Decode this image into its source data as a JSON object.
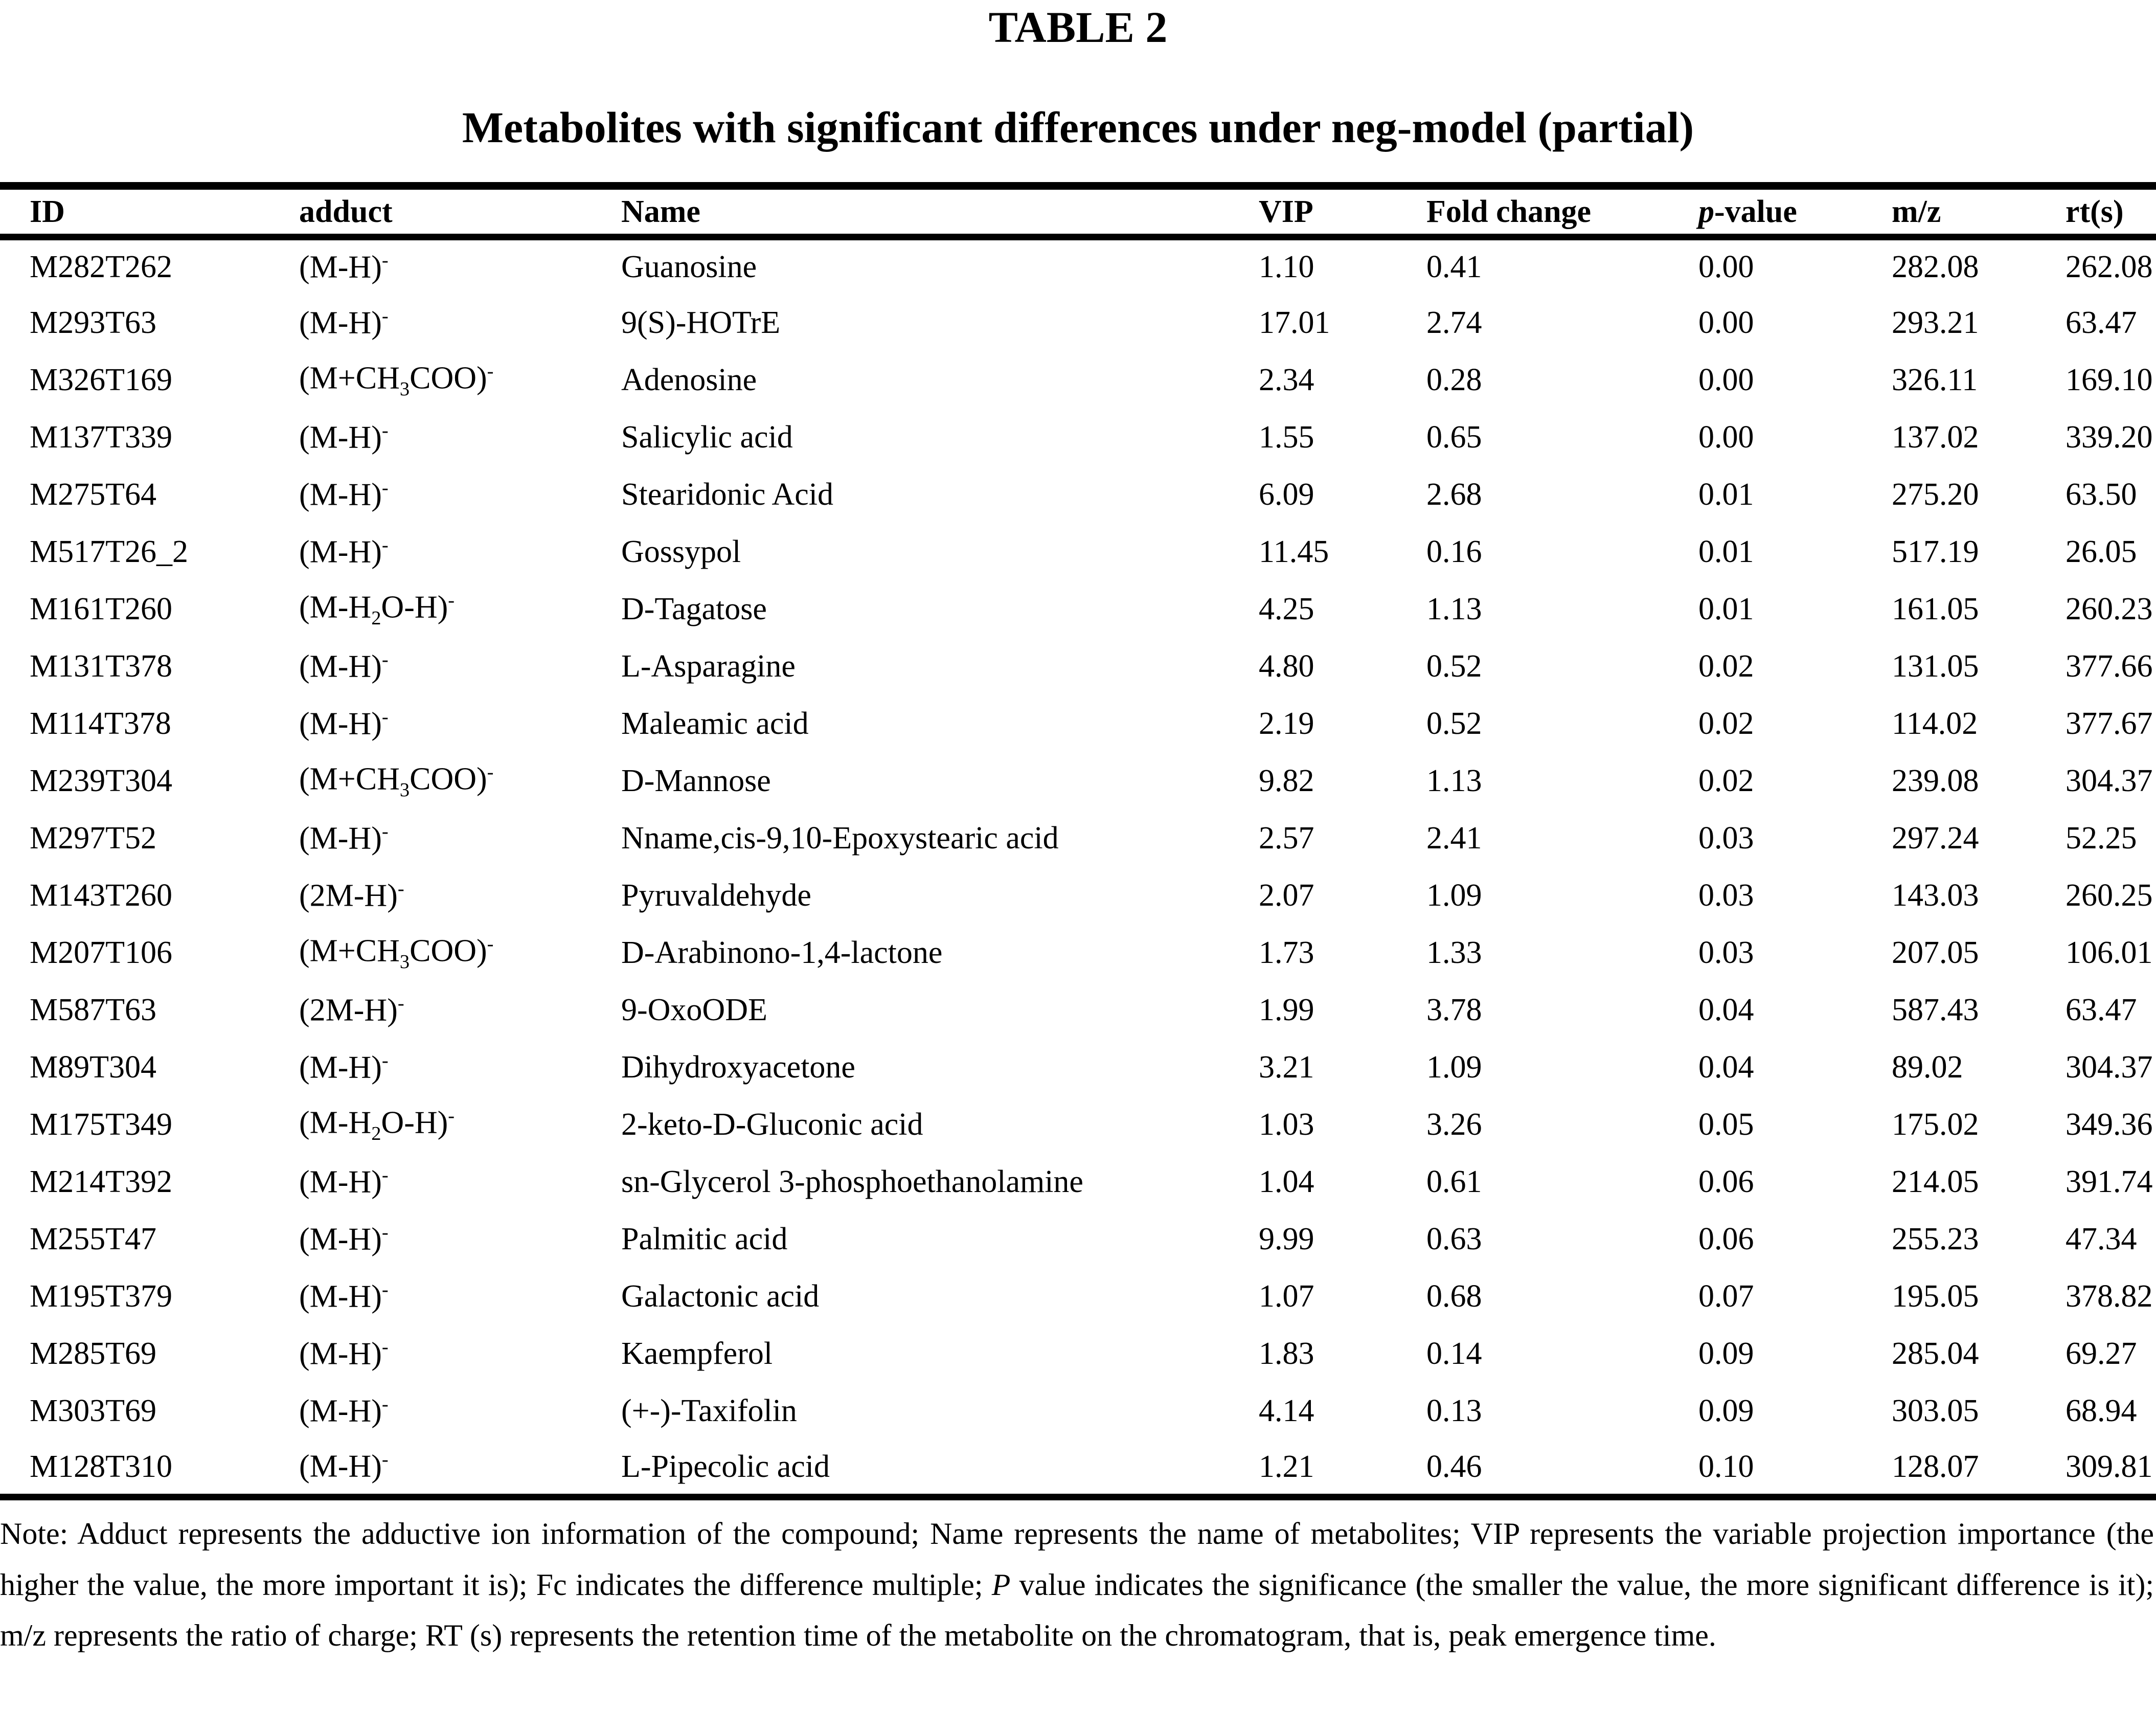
{
  "title": "TABLE 2",
  "subtitle": "Metabolites with significant differences under neg-model (partial)",
  "columns": {
    "id": "ID",
    "adduct": "adduct",
    "name": "Name",
    "vip": "VIP",
    "fold_change": "Fold change",
    "p_value": "*p*-value",
    "mz": "m/z",
    "rt": "rt(s)"
  },
  "rows": [
    {
      "id": "M282T262",
      "adduct": "(M-H)^-^",
      "name": "Guanosine",
      "vip": "1.10",
      "fold_change": "0.41",
      "p_value": "0.00",
      "mz": "282.08",
      "rt": "262.08"
    },
    {
      "id": "M293T63",
      "adduct": "(M-H)^-^",
      "name": "9(S)-HOTrE",
      "vip": "17.01",
      "fold_change": "2.74",
      "p_value": "0.00",
      "mz": "293.21",
      "rt": "63.47"
    },
    {
      "id": "M326T169",
      "adduct": "(M+CH~3~COO)^-^",
      "name": "Adenosine",
      "vip": "2.34",
      "fold_change": "0.28",
      "p_value": "0.00",
      "mz": "326.11",
      "rt": "169.10"
    },
    {
      "id": "M137T339",
      "adduct": "(M-H)^-^",
      "name": "Salicylic acid",
      "vip": "1.55",
      "fold_change": "0.65",
      "p_value": "0.00",
      "mz": "137.02",
      "rt": "339.20"
    },
    {
      "id": "M275T64",
      "adduct": "(M-H)^-^",
      "name": "Stearidonic Acid",
      "vip": "6.09",
      "fold_change": "2.68",
      "p_value": "0.01",
      "mz": "275.20",
      "rt": "63.50"
    },
    {
      "id": "M517T26_2",
      "adduct": "(M-H)^-^",
      "name": "Gossypol",
      "vip": "11.45",
      "fold_change": "0.16",
      "p_value": "0.01",
      "mz": "517.19",
      "rt": "26.05"
    },
    {
      "id": "M161T260",
      "adduct": "(M-H~2~O-H)^-^",
      "name": "D-Tagatose",
      "vip": "4.25",
      "fold_change": "1.13",
      "p_value": "0.01",
      "mz": "161.05",
      "rt": "260.23"
    },
    {
      "id": "M131T378",
      "adduct": "(M-H)^-^",
      "name": "L-Asparagine",
      "vip": "4.80",
      "fold_change": "0.52",
      "p_value": "0.02",
      "mz": "131.05",
      "rt": "377.66"
    },
    {
      "id": "M114T378",
      "adduct": "(M-H)^-^",
      "name": "Maleamic acid",
      "vip": "2.19",
      "fold_change": "0.52",
      "p_value": "0.02",
      "mz": "114.02",
      "rt": "377.67"
    },
    {
      "id": "M239T304",
      "adduct": "(M+CH~3~COO)^-^",
      "name": "D-Mannose",
      "vip": "9.82",
      "fold_change": "1.13",
      "p_value": "0.02",
      "mz": "239.08",
      "rt": "304.37"
    },
    {
      "id": "M297T52",
      "adduct": "(M-H)^-^",
      "name": "Nname,cis-9,10-Epoxystearic acid",
      "vip": "2.57",
      "fold_change": "2.41",
      "p_value": "0.03",
      "mz": "297.24",
      "rt": "52.25"
    },
    {
      "id": "M143T260",
      "adduct": "(2M-H)^-^",
      "name": "Pyruvaldehyde",
      "vip": "2.07",
      "fold_change": "1.09",
      "p_value": "0.03",
      "mz": "143.03",
      "rt": "260.25"
    },
    {
      "id": "M207T106",
      "adduct": "(M+CH~3~COO)^-^",
      "name": "D-Arabinono-1,4-lactone",
      "vip": "1.73",
      "fold_change": "1.33",
      "p_value": "0.03",
      "mz": "207.05",
      "rt": "106.01"
    },
    {
      "id": "M587T63",
      "adduct": "(2M-H)^-^",
      "name": "9-OxoODE",
      "vip": "1.99",
      "fold_change": "3.78",
      "p_value": "0.04",
      "mz": "587.43",
      "rt": "63.47"
    },
    {
      "id": "M89T304",
      "adduct": "(M-H)^-^",
      "name": "Dihydroxyacetone",
      "vip": "3.21",
      "fold_change": "1.09",
      "p_value": "0.04",
      "mz": "89.02",
      "rt": "304.37"
    },
    {
      "id": "M175T349",
      "adduct": "(M-H~2~O-H)^-^",
      "name": "2-keto-D-Gluconic acid",
      "vip": "1.03",
      "fold_change": "3.26",
      "p_value": "0.05",
      "mz": "175.02",
      "rt": "349.36"
    },
    {
      "id": "M214T392",
      "adduct": "(M-H)^-^",
      "name": "sn-Glycerol 3-phosphoethanolamine",
      "vip": "1.04",
      "fold_change": "0.61",
      "p_value": "0.06",
      "mz": "214.05",
      "rt": "391.74"
    },
    {
      "id": "M255T47",
      "adduct": "(M-H)^-^",
      "name": "Palmitic acid",
      "vip": "9.99",
      "fold_change": "0.63",
      "p_value": "0.06",
      "mz": "255.23",
      "rt": "47.34"
    },
    {
      "id": "M195T379",
      "adduct": "(M-H)^-^",
      "name": "Galactonic acid",
      "vip": "1.07",
      "fold_change": "0.68",
      "p_value": "0.07",
      "mz": "195.05",
      "rt": "378.82"
    },
    {
      "id": "M285T69",
      "adduct": "(M-H)^-^",
      "name": "Kaempferol",
      "vip": "1.83",
      "fold_change": "0.14",
      "p_value": "0.09",
      "mz": "285.04",
      "rt": "69.27"
    },
    {
      "id": "M303T69",
      "adduct": "(M-H)^-^",
      "name": "(+-)-Taxifolin",
      "vip": "4.14",
      "fold_change": "0.13",
      "p_value": "0.09",
      "mz": "303.05",
      "rt": "68.94"
    },
    {
      "id": "M128T310",
      "adduct": "(M-H)^-^",
      "name": "L-Pipecolic acid",
      "vip": "1.21",
      "fold_change": "0.46",
      "p_value": "0.10",
      "mz": "128.07",
      "rt": "309.81"
    }
  ],
  "note": "Note: Adduct represents the adductive ion information of the compound; Name represents the name of metabolites; VIP represents the variable projection importance (the higher the value, the more important it is); Fc indicates the difference multiple; *P* value indicates the significance (the smaller the value, the more significant difference is it); m/z represents the ratio of charge; RT (s) represents the retention time of the metabolite on the chromatogram, that is, peak emergence time."
}
